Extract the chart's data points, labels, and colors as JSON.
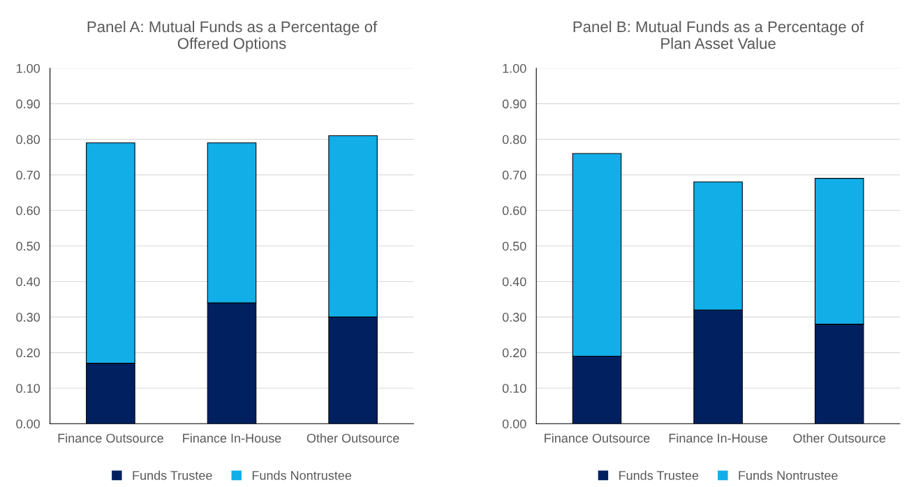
{
  "chart_data": [
    {
      "type": "bar",
      "title": "Panel A: Mutual Funds as a Percentage of\nOffered Options",
      "categories": [
        "Finance Outsource",
        "Finance In-House",
        "Other Outsource"
      ],
      "stacked": true,
      "ylim": [
        0,
        1
      ],
      "yticks": [
        {
          "value": 0,
          "label": "0.00"
        },
        {
          "value": 0.1,
          "label": "0.10"
        },
        {
          "value": 0.2,
          "label": "0.20"
        },
        {
          "value": 0.3,
          "label": "0.30"
        },
        {
          "value": 0.4,
          "label": "0.40"
        },
        {
          "value": 0.5,
          "label": "0.50"
        },
        {
          "value": 0.6,
          "label": "0.60"
        },
        {
          "value": 0.7,
          "label": "0.70"
        },
        {
          "value": 0.8,
          "label": "0.80"
        },
        {
          "value": 0.9,
          "label": "0.90"
        },
        {
          "value": 1,
          "label": "1.00"
        }
      ],
      "grid": "y",
      "legend": "bottom",
      "series": [
        {
          "name": "Funds Trustee",
          "color": "#002060",
          "values": [
            0.17,
            0.34,
            0.3
          ]
        },
        {
          "name": "Funds Nontrustee",
          "color": "#12aee8",
          "values": [
            0.62,
            0.45,
            0.51
          ]
        }
      ]
    },
    {
      "type": "bar",
      "title": "Panel B: Mutual Funds as a Percentage of\nPlan Asset Value",
      "categories": [
        "Finance Outsource",
        "Finance In-House",
        "Other Outsource"
      ],
      "stacked": true,
      "ylim": [
        0,
        1
      ],
      "yticks": [
        {
          "value": 0,
          "label": "0.00"
        },
        {
          "value": 0.1,
          "label": "0.10"
        },
        {
          "value": 0.2,
          "label": "0.20"
        },
        {
          "value": 0.3,
          "label": "0.30"
        },
        {
          "value": 0.4,
          "label": "0.40"
        },
        {
          "value": 0.5,
          "label": "0.50"
        },
        {
          "value": 0.6,
          "label": "0.60"
        },
        {
          "value": 0.7,
          "label": "0.70"
        },
        {
          "value": 0.8,
          "label": "0.80"
        },
        {
          "value": 0.9,
          "label": "0.90"
        },
        {
          "value": 1,
          "label": "1.00"
        }
      ],
      "grid": "y",
      "legend": "bottom",
      "series": [
        {
          "name": "Funds Trustee",
          "color": "#002060",
          "values": [
            0.19,
            0.32,
            0.28
          ]
        },
        {
          "name": "Funds Nontrustee",
          "color": "#12aee8",
          "values": [
            0.57,
            0.36,
            0.41
          ]
        }
      ]
    }
  ]
}
